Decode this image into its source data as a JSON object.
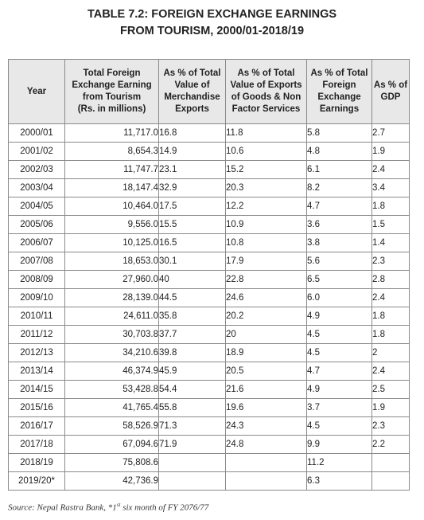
{
  "title": {
    "line1": "TABLE 7.2: FOREIGN EXCHANGE EARNINGS",
    "line2": "FROM TOURISM, 2000/01-2018/19"
  },
  "table": {
    "headers": {
      "year": "Year",
      "total_l1": "Total Foreign",
      "total_l2": "Exchange Earning",
      "total_l3": "from Tourism",
      "total_l4": "(Rs. in millions)",
      "merch_l1": "As % of Total",
      "merch_l2": "Value of",
      "merch_l3": "Merchandise",
      "merch_l4": "Exports",
      "goods_l1": "As % of Total",
      "goods_l2": "Value of Exports",
      "goods_l3": "of Goods & Non",
      "goods_l4": "Factor Services",
      "fee_l1": "As % of Total",
      "fee_l2": "Foreign",
      "fee_l3": "Exchange",
      "fee_l4": "Earnings",
      "gdp_l1": "As % of",
      "gdp_l2": "GDP"
    },
    "rows": [
      {
        "year": "2000/01",
        "total": "11,717.0",
        "merch": "16.8",
        "goods": "11.8",
        "fee": "5.8",
        "gdp": "2.7"
      },
      {
        "year": "2001/02",
        "total": "8,654.3",
        "merch": "14.9",
        "goods": "10.6",
        "fee": "4.8",
        "gdp": "1.9"
      },
      {
        "year": "2002/03",
        "total": "11,747.7",
        "merch": "23.1",
        "goods": "15.2",
        "fee": "6.1",
        "gdp": "2.4"
      },
      {
        "year": "2003/04",
        "total": "18,147.4",
        "merch": "32.9",
        "goods": "20.3",
        "fee": "8.2",
        "gdp": "3.4"
      },
      {
        "year": "2004/05",
        "total": "10,464.0",
        "merch": "17.5",
        "goods": "12.2",
        "fee": "4.7",
        "gdp": "1.8"
      },
      {
        "year": "2005/06",
        "total": "9,556.0",
        "merch": "15.5",
        "goods": "10.9",
        "fee": "3.6",
        "gdp": "1.5"
      },
      {
        "year": "2006/07",
        "total": "10,125.0",
        "merch": "16.5",
        "goods": "10.8",
        "fee": "3.8",
        "gdp": "1.4"
      },
      {
        "year": "2007/08",
        "total": "18,653.0",
        "merch": "30.1",
        "goods": "17.9",
        "fee": "5.6",
        "gdp": "2.3"
      },
      {
        "year": "2008/09",
        "total": "27,960.0",
        "merch": "40",
        "goods": "22.8",
        "fee": "6.5",
        "gdp": "2.8"
      },
      {
        "year": "2009/10",
        "total": "28,139.0",
        "merch": "44.5",
        "goods": "24.6",
        "fee": "6.0",
        "gdp": "2.4"
      },
      {
        "year": "2010/11",
        "total": "24,611.0",
        "merch": "35.8",
        "goods": "20.2",
        "fee": "4.9",
        "gdp": "1.8"
      },
      {
        "year": "2011/12",
        "total": "30,703.8",
        "merch": "37.7",
        "goods": "20",
        "fee": "4.5",
        "gdp": "1.8"
      },
      {
        "year": "2012/13",
        "total": "34,210.6",
        "merch": "39.8",
        "goods": "18.9",
        "fee": "4.5",
        "gdp": "2"
      },
      {
        "year": "2013/14",
        "total": "46,374.9",
        "merch": "45.9",
        "goods": "20.5",
        "fee": "4.7",
        "gdp": "2.4"
      },
      {
        "year": "2014/15",
        "total": "53,428.8",
        "merch": "54.4",
        "goods": "21.6",
        "fee": "4.9",
        "gdp": "2.5"
      },
      {
        "year": "2015/16",
        "total": "41,765.4",
        "merch": "55.8",
        "goods": "19.6",
        "fee": "3.7",
        "gdp": "1.9"
      },
      {
        "year": "2016/17",
        "total": "58,526.9",
        "merch": "71.3",
        "goods": "24.3",
        "fee": "4.5",
        "gdp": "2.3"
      },
      {
        "year": "2017/18",
        "total": "67,094.6",
        "merch": "71.9",
        "goods": "24.8",
        "fee": "9.9",
        "gdp": "2.2"
      },
      {
        "year": "2018/19",
        "total": "75,808.6",
        "merch": "",
        "goods": "",
        "fee": "11.2",
        "gdp": ""
      },
      {
        "year": "2019/20*",
        "total": "42,736.9",
        "merch": "",
        "goods": "",
        "fee": "6.3",
        "gdp": ""
      }
    ]
  },
  "source": {
    "prefix": "Source: Nepal Rastra Bank, *1",
    "sup": "st",
    "suffix": " six  month of FY 2076/77"
  }
}
